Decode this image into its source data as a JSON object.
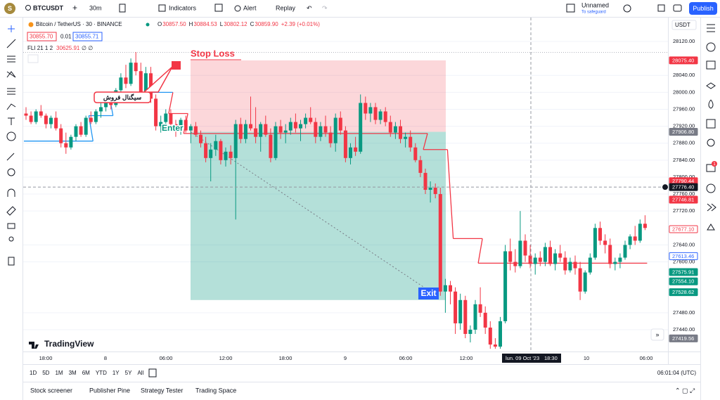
{
  "topbar": {
    "avatar": "S",
    "symbol": "BTCUSDT",
    "interval": "30m",
    "indicators": "Indicators",
    "alert": "Alert",
    "replay": "Replay",
    "layout_name": "Unnamed",
    "layout_note": "To safeguard",
    "publish": "Publish"
  },
  "legend": {
    "title": "Bitcoin / TetherUS · 30 · BINANCE",
    "ohlc": [
      {
        "key": "O",
        "value": "30857.50"
      },
      {
        "key": "H",
        "value": "30884.53"
      },
      {
        "key": "L",
        "value": "30802.12"
      },
      {
        "key": "C",
        "value": "30859.90"
      }
    ],
    "change": "+2.39 (+0.01%)",
    "bid": "30855.70",
    "spread": "0.01",
    "ask": "30855.71",
    "indicator_name": "FLI 21 1 2",
    "indicator_value": "30625.91",
    "indicator_extra": "∅ ∅"
  },
  "currency": "USDT",
  "chart": {
    "ylim": [
      27400,
      28120
    ],
    "yticks": [
      {
        "value": 28120,
        "label": "28120.00"
      },
      {
        "value": 28040,
        "label": "28040.00"
      },
      {
        "value": 28000,
        "label": "28000.00"
      },
      {
        "value": 27960,
        "label": "27960.00"
      },
      {
        "value": 27920,
        "label": "27920.00"
      },
      {
        "value": 27880,
        "label": "27880.00"
      },
      {
        "value": 27840,
        "label": "27840.00"
      },
      {
        "value": 27800,
        "label": "27800.00"
      },
      {
        "value": 27760,
        "label": "27760.00"
      },
      {
        "value": 27720,
        "label": "27720.00"
      },
      {
        "value": 27640,
        "label": "27640.00"
      },
      {
        "value": 27600,
        "label": "27600.00"
      },
      {
        "value": 27480,
        "label": "27480.00"
      },
      {
        "value": 27440,
        "label": "27440.00"
      }
    ],
    "price_labels": [
      {
        "value": 28075.4,
        "label": "28075.40",
        "color": "#f23645"
      },
      {
        "value": 27906.8,
        "label": "27906.80",
        "color": "#787b86"
      },
      {
        "value": 27790.44,
        "label": "27790.44",
        "color": "#f23645"
      },
      {
        "value": 27776.4,
        "label": "27776.40",
        "color": "#131722"
      },
      {
        "value": 27746.81,
        "label": "27746.81",
        "color": "#f23645"
      },
      {
        "value": 27677.1,
        "label": "27677.10",
        "color": "#f23645"
      },
      {
        "value": 27613.46,
        "label": "27613.46",
        "color": "#2962ff"
      },
      {
        "value": 27575.91,
        "label": "27575.91",
        "color": "#089981"
      },
      {
        "value": 27554.1,
        "label": "27554.10",
        "color": "#089981"
      },
      {
        "value": 27528.62,
        "label": "27528.62",
        "color": "#089981"
      },
      {
        "value": 27419.56,
        "label": "27419.56",
        "color": "#787b86"
      }
    ],
    "time_labels": [
      "18:00",
      "8",
      "06:00",
      "12:00",
      "18:00",
      "9",
      "06:00",
      "12:00",
      "10",
      "06:00"
    ],
    "crosshair_date": "lun. 09 Oct '23",
    "crosshair_time": "18:30",
    "crosshair_price": 27776.4,
    "up_color": "#089981",
    "down_color": "#f23645",
    "candles": [
      [
        27950,
        27965,
        27935,
        27945
      ],
      [
        27945,
        27955,
        27925,
        27930
      ],
      [
        27930,
        27960,
        27925,
        27955
      ],
      [
        27955,
        27970,
        27940,
        27945
      ],
      [
        27945,
        27950,
        27915,
        27925
      ],
      [
        27925,
        27945,
        27915,
        27940
      ],
      [
        27940,
        27955,
        27910,
        27915
      ],
      [
        27915,
        27925,
        27870,
        27880
      ],
      [
        27880,
        27905,
        27855,
        27870
      ],
      [
        27870,
        27900,
        27865,
        27895
      ],
      [
        27895,
        27925,
        27885,
        27920
      ],
      [
        27920,
        27930,
        27895,
        27900
      ],
      [
        27900,
        27945,
        27895,
        27940
      ],
      [
        27940,
        27955,
        27925,
        27930
      ],
      [
        27930,
        27960,
        27925,
        27955
      ],
      [
        27955,
        27975,
        27940,
        27965
      ],
      [
        27965,
        27990,
        27955,
        27985
      ],
      [
        27985,
        28000,
        27960,
        27970
      ],
      [
        27970,
        28010,
        27965,
        28005
      ],
      [
        28005,
        28045,
        27995,
        28035
      ],
      [
        28035,
        28065,
        28010,
        28020
      ],
      [
        28020,
        28080,
        28015,
        28070
      ],
      [
        28070,
        28095,
        28040,
        28050
      ],
      [
        28050,
        28070,
        27985,
        27995
      ],
      [
        27995,
        28060,
        27990,
        28045
      ],
      [
        28045,
        28060,
        27975,
        27985
      ],
      [
        27985,
        27995,
        27910,
        27920
      ],
      [
        27920,
        27945,
        27905,
        27930
      ],
      [
        27930,
        27960,
        27920,
        27950
      ],
      [
        27950,
        27960,
        27915,
        27925
      ],
      [
        27925,
        27935,
        27895,
        27915
      ],
      [
        27915,
        27940,
        27900,
        27935
      ],
      [
        27935,
        27945,
        27905,
        27910
      ],
      [
        27910,
        27925,
        27880,
        27920
      ],
      [
        27920,
        27930,
        27895,
        27900
      ],
      [
        27900,
        27910,
        27870,
        27880
      ],
      [
        27880,
        27895,
        27835,
        27845
      ],
      [
        27845,
        27880,
        27790,
        27865
      ],
      [
        27865,
        27900,
        27850,
        27885
      ],
      [
        27885,
        27890,
        27830,
        27840
      ],
      [
        27840,
        27870,
        27825,
        27860
      ],
      [
        27860,
        27875,
        27830,
        27845
      ],
      [
        27845,
        27935,
        27700,
        27925
      ],
      [
        27925,
        27940,
        27880,
        27890
      ],
      [
        27890,
        27935,
        27880,
        27925
      ],
      [
        27925,
        27990,
        27910,
        27915
      ],
      [
        27915,
        27965,
        27880,
        27895
      ],
      [
        27895,
        27930,
        27860,
        27925
      ],
      [
        27925,
        27945,
        27895,
        27900
      ],
      [
        27900,
        27915,
        27835,
        27845
      ],
      [
        27845,
        27930,
        27840,
        27920
      ],
      [
        27920,
        27935,
        27890,
        27905
      ],
      [
        27905,
        27925,
        27880,
        27910
      ],
      [
        27910,
        27940,
        27900,
        27930
      ],
      [
        27930,
        27950,
        27905,
        27915
      ],
      [
        27915,
        27935,
        27885,
        27925
      ],
      [
        27925,
        27950,
        27915,
        27940
      ],
      [
        27940,
        27965,
        27925,
        27930
      ],
      [
        27930,
        27940,
        27880,
        27895
      ],
      [
        27895,
        27930,
        27885,
        27920
      ],
      [
        27920,
        27945,
        27895,
        27905
      ],
      [
        27905,
        27920,
        27870,
        27880
      ],
      [
        27880,
        27950,
        27860,
        27940
      ],
      [
        27940,
        27955,
        27900,
        27910
      ],
      [
        27910,
        27920,
        27835,
        27845
      ],
      [
        27845,
        27880,
        27830,
        27870
      ],
      [
        27870,
        27895,
        27850,
        27860
      ],
      [
        27860,
        27995,
        27855,
        27975
      ],
      [
        27975,
        27990,
        27935,
        27950
      ],
      [
        27950,
        27975,
        27930,
        27965
      ],
      [
        27965,
        27975,
        27925,
        27935
      ],
      [
        27935,
        27960,
        27925,
        27955
      ],
      [
        27955,
        27965,
        27920,
        27930
      ],
      [
        27930,
        27945,
        27895,
        27905
      ],
      [
        27905,
        27930,
        27890,
        27920
      ],
      [
        27920,
        27935,
        27880,
        27890
      ],
      [
        27890,
        27905,
        27870,
        27895
      ],
      [
        27895,
        27910,
        27860,
        27870
      ],
      [
        27870,
        27880,
        27835,
        27840
      ],
      [
        27840,
        27850,
        27800,
        27810
      ],
      [
        27810,
        27820,
        27760,
        27770
      ],
      [
        27770,
        27790,
        27740,
        27775
      ],
      [
        27775,
        27785,
        27750,
        27760
      ],
      [
        27760,
        27775,
        27520,
        27530
      ],
      [
        27530,
        27560,
        27480,
        27545
      ],
      [
        27545,
        27555,
        27500,
        27530
      ],
      [
        27530,
        27540,
        27430,
        27455
      ],
      [
        27455,
        27525,
        27440,
        27510
      ],
      [
        27510,
        27520,
        27420,
        27430
      ],
      [
        27430,
        27450,
        27410,
        27440
      ],
      [
        27440,
        27510,
        27430,
        27500
      ],
      [
        27500,
        27540,
        27470,
        27480
      ],
      [
        27480,
        27495,
        27430,
        27445
      ],
      [
        27445,
        27460,
        27395,
        27405
      ],
      [
        27405,
        27420,
        27395,
        27400
      ],
      [
        27400,
        27470,
        27395,
        27460
      ],
      [
        27460,
        27640,
        27455,
        27625
      ],
      [
        27625,
        27655,
        27580,
        27600
      ],
      [
        27600,
        27630,
        27575,
        27590
      ],
      [
        27590,
        27720,
        27585,
        27650
      ],
      [
        27650,
        27665,
        27600,
        27615
      ],
      [
        27615,
        27640,
        27585,
        27595
      ],
      [
        27595,
        27620,
        27570,
        27610
      ],
      [
        27610,
        27625,
        27590,
        27600
      ],
      [
        27600,
        27645,
        27590,
        27635
      ],
      [
        27635,
        27650,
        27590,
        27595
      ],
      [
        27595,
        27630,
        27580,
        27620
      ],
      [
        27620,
        27640,
        27600,
        27610
      ],
      [
        27610,
        27625,
        27570,
        27580
      ],
      [
        27580,
        27610,
        27575,
        27600
      ],
      [
        27600,
        27615,
        27570,
        27585
      ],
      [
        27585,
        27600,
        27510,
        27530
      ],
      [
        27530,
        27580,
        27525,
        27575
      ],
      [
        27575,
        27620,
        27570,
        27610
      ],
      [
        27610,
        27690,
        27605,
        27680
      ],
      [
        27680,
        27695,
        27640,
        27650
      ],
      [
        27650,
        27665,
        27620,
        27640
      ],
      [
        27640,
        27655,
        27585,
        27595
      ],
      [
        27595,
        27610,
        27580,
        27600
      ],
      [
        27600,
        27620,
        27585,
        27610
      ],
      [
        27610,
        27650,
        27605,
        27640
      ],
      [
        27640,
        27665,
        27630,
        27660
      ],
      [
        27660,
        27685,
        27640,
        27650
      ],
      [
        27650,
        27700,
        27645,
        27690
      ],
      [
        27690,
        27710,
        27675,
        27680
      ]
    ],
    "trail": [
      {
        "start": 0,
        "end": 13,
        "value": 27885,
        "color": "#2196f3"
      },
      {
        "start": 13,
        "end": 17,
        "value": 27945,
        "color": "#2196f3"
      },
      {
        "start": 17,
        "end": 29,
        "value": 28000,
        "color": "#2196f3"
      },
      {
        "start": 29,
        "end": 32,
        "value": 27950,
        "color": "#f23645"
      },
      {
        "start": 32,
        "end": 80,
        "value": 27903,
        "color": "#f23645"
      },
      {
        "start": 80,
        "end": 84,
        "value": 27865,
        "color": "#f23645"
      },
      {
        "start": 86,
        "end": 91,
        "value": 27655,
        "color": "#f23645"
      },
      {
        "start": 91,
        "end": 124,
        "value": 27597,
        "color": "#f23645"
      }
    ],
    "position": {
      "stop": 28075.4,
      "entry": 27906.8,
      "target": 27510
    },
    "annotations": {
      "stop_loss": "Stop Loss",
      "enter": "Enter",
      "exit": "Exit",
      "signal": "سیگنال فروش"
    }
  },
  "logo": "TradingView",
  "ranges": [
    "1D",
    "5D",
    "1M",
    "3M",
    "6M",
    "YTD",
    "1Y",
    "5Y",
    "All"
  ],
  "clock": "06:01:04 (UTC)",
  "tabs": [
    "Stock screener",
    "Publisher Pine",
    "Strategy Tester",
    "Trading Space"
  ],
  "badge": "1"
}
